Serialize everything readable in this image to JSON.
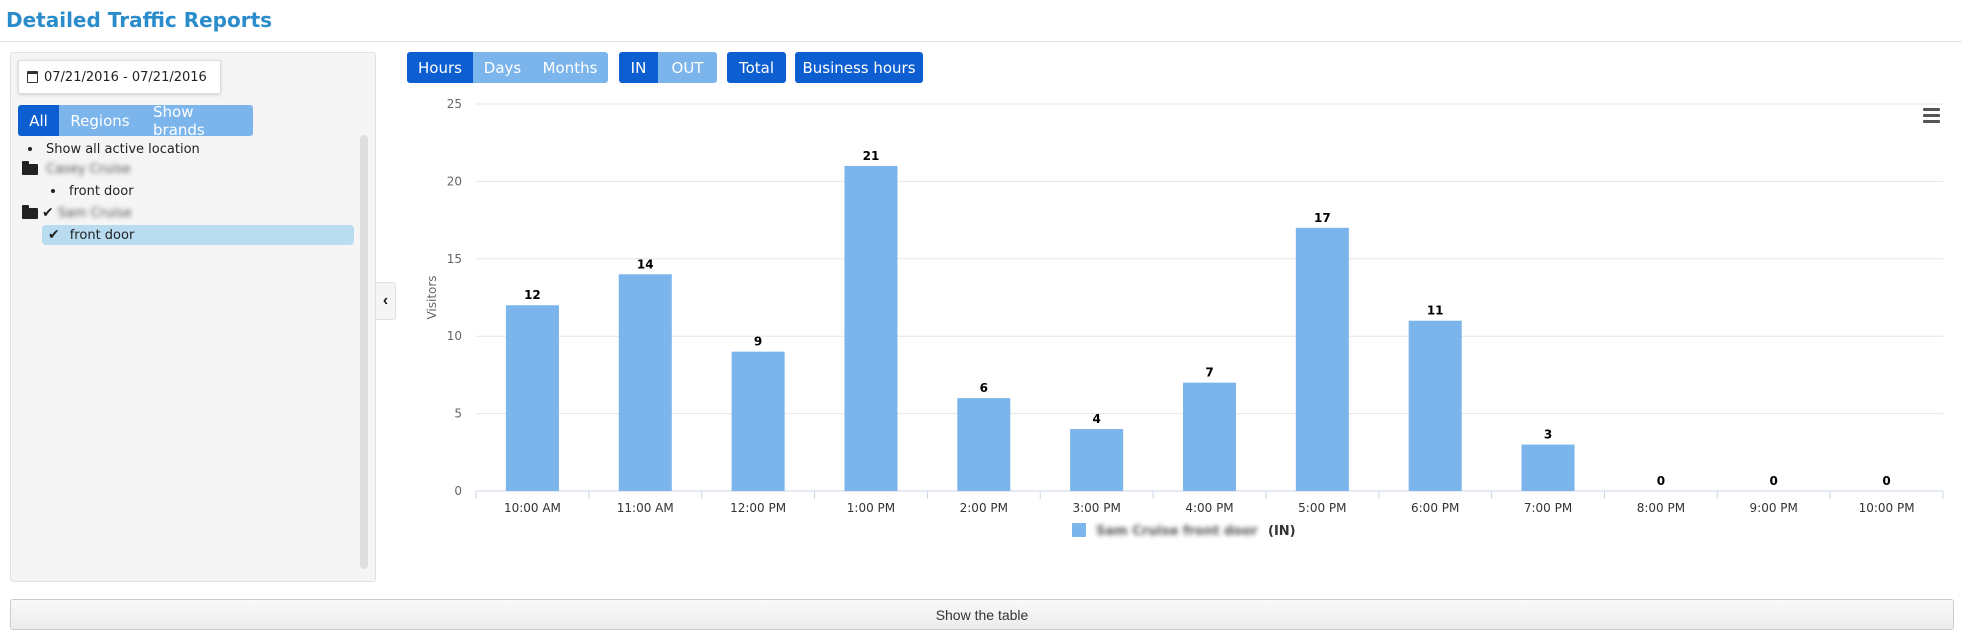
{
  "page": {
    "title": "Detailed Traffic Reports"
  },
  "sidebar": {
    "date_range": "07/21/2016 - 07/21/2016",
    "filter_buttons": [
      "All",
      "Regions",
      "Show brands"
    ],
    "tree": {
      "show_all": "Show all active location",
      "group1_name": "Casey Cruise",
      "group1_child": "front door",
      "group2_name": "Sam Cruise",
      "group2_child": "front door"
    }
  },
  "toolbar": {
    "period_buttons": [
      "Hours",
      "Days",
      "Months"
    ],
    "direction_buttons": [
      "IN",
      "OUT"
    ],
    "total_label": "Total",
    "business_label": "Business hours"
  },
  "chart_data": {
    "type": "bar",
    "categories": [
      "10:00 AM",
      "11:00 AM",
      "12:00 PM",
      "1:00 PM",
      "2:00 PM",
      "3:00 PM",
      "4:00 PM",
      "5:00 PM",
      "6:00 PM",
      "7:00 PM",
      "8:00 PM",
      "9:00 PM",
      "10:00 PM"
    ],
    "series": [
      {
        "name": "Sam Cruise front door (IN)",
        "values": [
          12,
          14,
          9,
          21,
          6,
          4,
          7,
          17,
          11,
          3,
          0,
          0,
          0
        ],
        "color": "#7cb5ec"
      }
    ],
    "ylabel": "Visitors",
    "yticks": [
      0,
      5,
      10,
      15,
      20,
      25
    ],
    "ylim": [
      0,
      25
    ],
    "grid": true,
    "legend": "bottom-center",
    "legend_blurred_text": "Sam Cruise front door",
    "legend_suffix": "(IN)"
  },
  "footer": {
    "show_table_label": "Show the table"
  },
  "colors": {
    "accent": "#0d5fd1",
    "light": "#7cb5ec",
    "title": "#2b8ccc",
    "selected": "#b9dcf1"
  }
}
